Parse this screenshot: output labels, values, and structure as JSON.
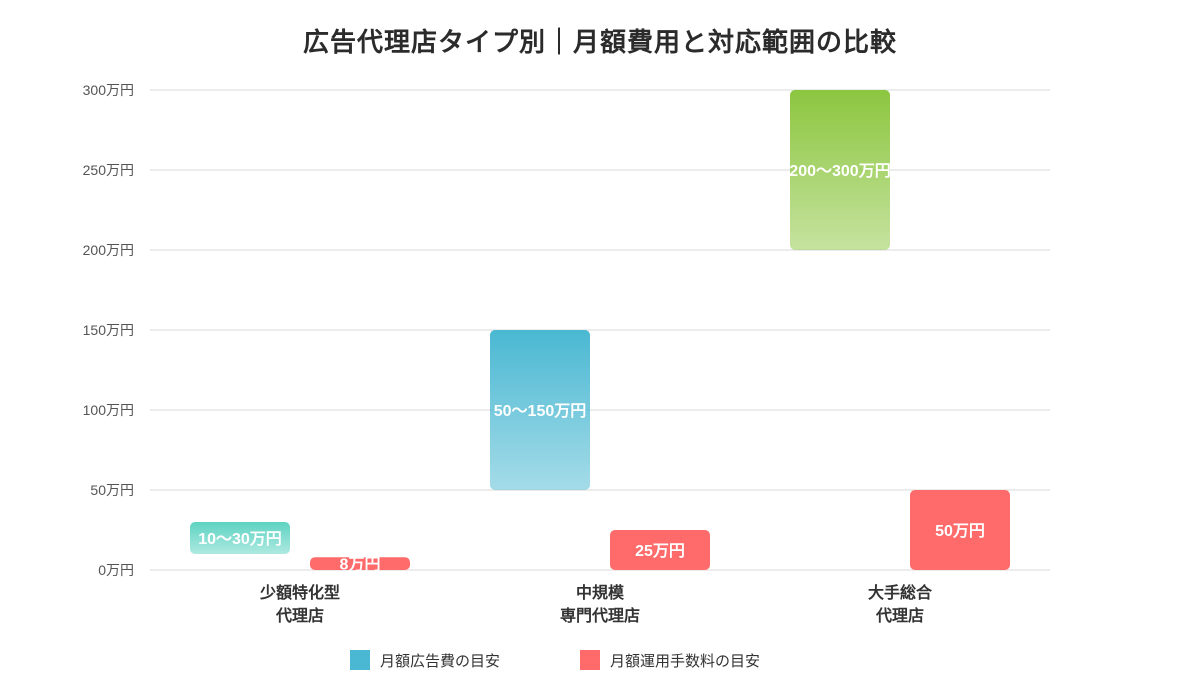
{
  "title": "広告代理店タイプ別｜月額費用と対応範囲の比較",
  "chart_data": {
    "type": "bar",
    "subtype": "floating-range",
    "categories": [
      [
        "少額特化型",
        "代理店"
      ],
      [
        "中規模",
        "専門代理店"
      ],
      [
        "大手総合",
        "代理店"
      ]
    ],
    "series": [
      {
        "name": "月額広告費の目安",
        "color": "#4ab8d2",
        "ranges": [
          [
            10,
            30
          ],
          [
            50,
            150
          ],
          [
            200,
            300
          ]
        ],
        "labels": [
          "10〜30万円",
          "50〜150万円",
          "200〜300万円"
        ]
      },
      {
        "name": "月額運用手数料の目安",
        "color": "#ff6b6b",
        "ranges": [
          [
            0,
            8
          ],
          [
            0,
            25
          ],
          [
            0,
            50
          ]
        ],
        "labels": [
          "8万円",
          "25万円",
          "50万円"
        ]
      }
    ],
    "category_colors_series0": [
      "#5ed3c2",
      "#4ab8d2",
      "#8cc63f"
    ],
    "ylim": [
      0,
      300
    ],
    "yticks": [
      0,
      50,
      100,
      150,
      200,
      250,
      300
    ],
    "ytick_labels": [
      "0万円",
      "50万円",
      "100万円",
      "150万円",
      "200万円",
      "250万円",
      "300万円"
    ],
    "grid": true,
    "legend_position": "bottom"
  }
}
